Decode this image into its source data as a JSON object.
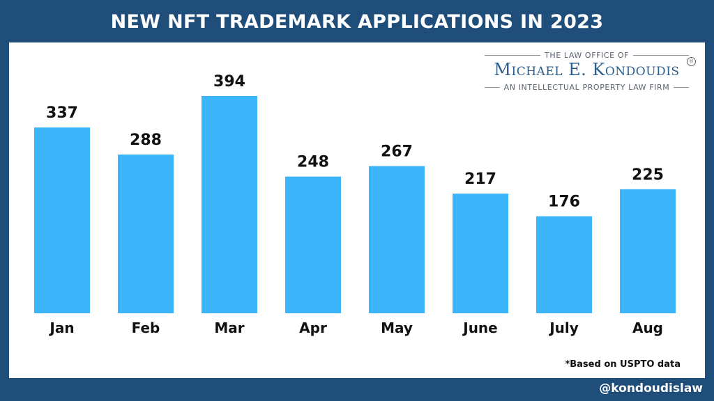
{
  "title": "NEW NFT TRADEMARK APPLICATIONS IN 2023",
  "logo": {
    "top_line": "THE LAW OFFICE OF",
    "name": "Michael E. Kondoudis",
    "bottom_line": "AN INTELLECTUAL PROPERTY LAW FIRM",
    "registered_mark": "®"
  },
  "footnote": "*Based on USPTO data",
  "handle": "@kondoudislaw",
  "colors": {
    "background": "#1f4e7a",
    "bar": "#3bb4f9",
    "logo_name": "#2c5f8f"
  },
  "chart_data": {
    "type": "bar",
    "title": "NEW NFT TRADEMARK APPLICATIONS IN 2023",
    "xlabel": "",
    "ylabel": "",
    "categories": [
      "Jan",
      "Feb",
      "Mar",
      "Apr",
      "May",
      "June",
      "July",
      "Aug"
    ],
    "values": [
      337,
      288,
      394,
      248,
      267,
      217,
      176,
      225
    ],
    "data_labels": true,
    "grid": false,
    "legend": "none",
    "ylim": [
      0,
      394
    ]
  }
}
